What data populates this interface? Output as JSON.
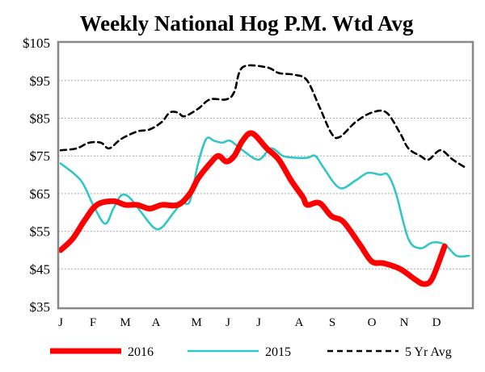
{
  "chart_data": {
    "type": "line",
    "title": "Weekly National Hog P.M. Wtd Avg",
    "xlabel": "",
    "ylabel": "",
    "x_tick_labels": [
      "J",
      "F",
      "M",
      "A",
      "M",
      "J",
      "J",
      "A",
      "S",
      "O",
      "N",
      "D"
    ],
    "y_tick_labels": [
      "$105",
      "$95",
      "$85",
      "$75",
      "$65",
      "$55",
      "$45",
      "$35"
    ],
    "ylim": [
      35,
      105
    ],
    "xlim": [
      0,
      12
    ],
    "grid": "horizontal dashed",
    "legend_placement": "bottom",
    "series": [
      {
        "name": "2016",
        "color": "#ff0000",
        "style": "solid-thick",
        "x": [
          0,
          0.35,
          0.71,
          1.06,
          1.54,
          1.89,
          2.25,
          2.6,
          2.96,
          3.43,
          3.78,
          4.02,
          4.37,
          4.61,
          4.85,
          5.08,
          5.32,
          5.6,
          6.03,
          6.38,
          6.74,
          7.09,
          7.21,
          7.57,
          7.92,
          8.27,
          8.75,
          9.1,
          9.46,
          9.93,
          10.4,
          10.64,
          10.87,
          11.23
        ],
        "values": [
          50,
          53,
          58,
          62,
          63,
          62,
          62,
          61,
          62,
          62,
          65,
          69,
          73,
          75,
          73.5,
          75,
          79,
          81,
          77,
          74,
          68.5,
          64,
          62,
          62.5,
          59,
          57.5,
          51.5,
          47,
          46.5,
          45,
          42,
          41,
          42.5,
          51
        ]
      },
      {
        "name": "2015",
        "color": "#33c6c6",
        "style": "solid",
        "x": [
          0,
          0.59,
          0.95,
          1.3,
          1.54,
          1.77,
          2.01,
          2.36,
          2.72,
          2.96,
          3.31,
          3.55,
          3.78,
          4.02,
          4.26,
          4.49,
          4.73,
          4.96,
          5.32,
          5.79,
          6.15,
          6.5,
          6.86,
          7.21,
          7.45,
          7.68,
          8.16,
          8.63,
          8.98,
          9.34,
          9.57,
          9.81,
          10.17,
          10.52,
          10.87,
          11.23,
          11.58,
          11.94
        ],
        "values": [
          73,
          68.5,
          62,
          57,
          61,
          64.5,
          64,
          60,
          56,
          56,
          60,
          62.5,
          63,
          73,
          79.5,
          79,
          78.5,
          79,
          76.5,
          74,
          77,
          75,
          74.5,
          74.5,
          75,
          72,
          66.5,
          68.5,
          70.5,
          70,
          70,
          65,
          53,
          50.5,
          52,
          51.5,
          48.5,
          48.5
        ]
      },
      {
        "name": "5 Yr Avg",
        "color": "#000000",
        "style": "dashed",
        "x": [
          0,
          0.47,
          0.83,
          1.18,
          1.42,
          1.77,
          2.25,
          2.6,
          2.96,
          3.19,
          3.43,
          3.62,
          4.02,
          4.37,
          4.85,
          5.08,
          5.32,
          6.03,
          6.38,
          6.86,
          7.21,
          7.57,
          7.92,
          8.16,
          8.63,
          9.1,
          9.53,
          9.93,
          10.17,
          10.52,
          10.76,
          11.11,
          11.47,
          11.82
        ],
        "values": [
          76.5,
          77,
          78.5,
          78.5,
          77,
          79.5,
          81.5,
          82,
          84,
          86.5,
          86.5,
          85.5,
          87.5,
          90,
          90,
          92,
          98.5,
          98.5,
          97,
          96.5,
          95,
          88,
          81,
          80,
          84,
          86.5,
          86.5,
          81,
          77,
          75,
          74,
          76.5,
          74,
          72
        ]
      }
    ]
  }
}
